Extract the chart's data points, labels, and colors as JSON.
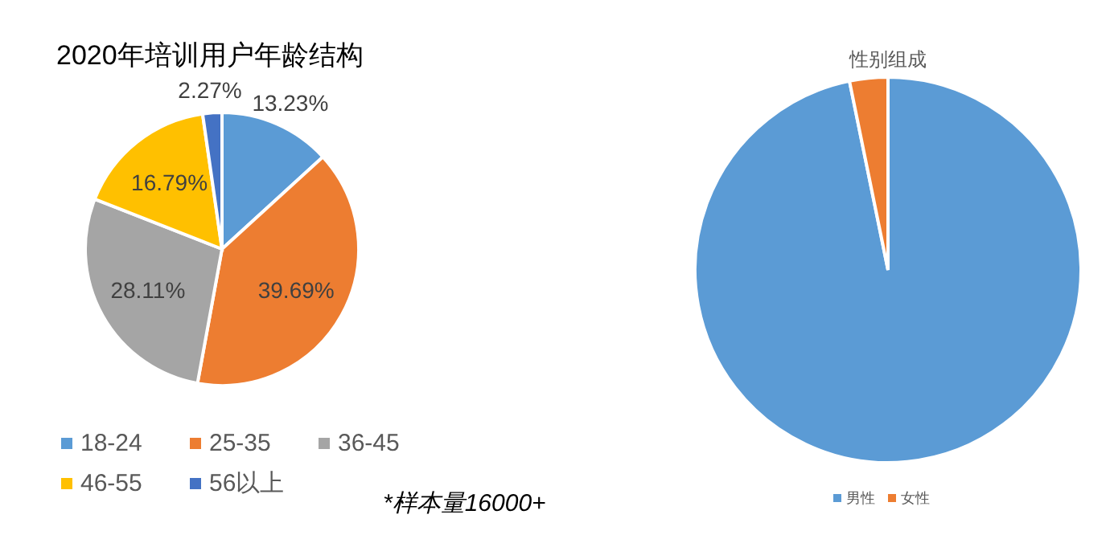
{
  "chart_data": [
    {
      "type": "pie",
      "title": "2020年培训用户年龄结构",
      "categories": [
        "18-24",
        "25-35",
        "36-45",
        "46-55",
        "56以上"
      ],
      "values": [
        13.23,
        39.69,
        28.11,
        16.79,
        2.27
      ],
      "colors": [
        "#5b9bd5",
        "#ed7d31",
        "#a5a5a5",
        "#ffc000",
        "#4472c4"
      ],
      "value_labels": [
        "13.23%",
        "39.69%",
        "28.11%",
        "16.79%",
        "2.27%"
      ],
      "legend": "bottom",
      "annotations": [
        "*样本量16000+"
      ]
    },
    {
      "type": "pie",
      "title": "性别组成",
      "categories": [
        "男性",
        "女性"
      ],
      "values": [
        96.8,
        3.2
      ],
      "colors": [
        "#5b9bd5",
        "#ed7d31"
      ],
      "legend": "bottom"
    }
  ]
}
